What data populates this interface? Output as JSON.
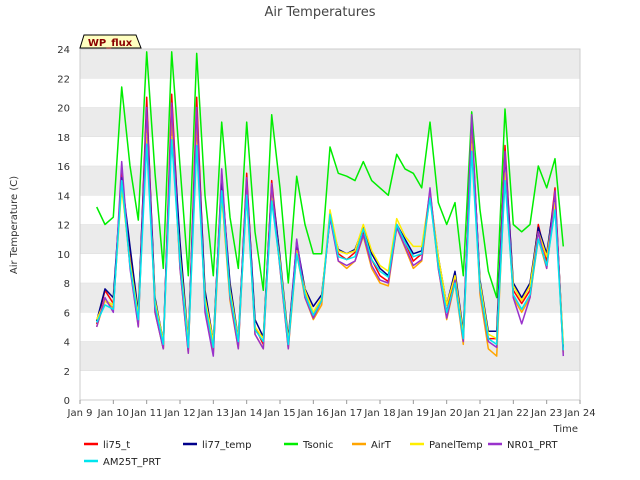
{
  "chart_data": {
    "type": "line",
    "title": "Air Temperatures",
    "xlabel": "Time",
    "ylabel": "Air Temperature (C)",
    "site_label": "WP_flux",
    "xlim": [
      "2024-01-09",
      "2024-01-24"
    ],
    "ylim": [
      0,
      24
    ],
    "x_ticks": [
      "Jan 9",
      "Jan 10",
      "Jan 11",
      "Jan 12",
      "Jan 13",
      "Jan 14",
      "Jan 15",
      "Jan 16",
      "Jan 17",
      "Jan 18",
      "Jan 19",
      "Jan 20",
      "Jan 21",
      "Jan 22",
      "Jan 23",
      "Jan 24"
    ],
    "y_ticks": [
      0,
      2,
      4,
      6,
      8,
      10,
      12,
      14,
      16,
      18,
      20,
      22,
      24
    ],
    "grid": "horizontal bands",
    "legend_position": "bottom",
    "x": [
      "Jan 9 12:00",
      "Jan 9 18:00",
      "Jan 10 00:00",
      "Jan 10 06:00",
      "Jan 10 12:00",
      "Jan 10 18:00",
      "Jan 11 00:00",
      "Jan 11 06:00",
      "Jan 11 12:00",
      "Jan 11 18:00",
      "Jan 12 00:00",
      "Jan 12 06:00",
      "Jan 12 12:00",
      "Jan 12 18:00",
      "Jan 13 00:00",
      "Jan 13 06:00",
      "Jan 13 12:00",
      "Jan 13 18:00",
      "Jan 14 00:00",
      "Jan 14 06:00",
      "Jan 14 12:00",
      "Jan 14 18:00",
      "Jan 15 00:00",
      "Jan 15 06:00",
      "Jan 15 12:00",
      "Jan 15 18:00",
      "Jan 16 00:00",
      "Jan 16 06:00",
      "Jan 16 12:00",
      "Jan 16 18:00",
      "Jan 17 00:00",
      "Jan 17 06:00",
      "Jan 17 12:00",
      "Jan 17 18:00",
      "Jan 18 00:00",
      "Jan 18 06:00",
      "Jan 18 12:00",
      "Jan 18 18:00",
      "Jan 19 00:00",
      "Jan 19 06:00",
      "Jan 19 12:00",
      "Jan 19 18:00",
      "Jan 20 00:00",
      "Jan 20 06:00",
      "Jan 20 12:00",
      "Jan 20 18:00",
      "Jan 21 00:00",
      "Jan 21 06:00",
      "Jan 21 12:00",
      "Jan 21 18:00",
      "Jan 22 00:00",
      "Jan 22 06:00",
      "Jan 22 12:00",
      "Jan 22 18:00",
      "Jan 23 00:00",
      "Jan 23 06:00",
      "Jan 23 12:00"
    ],
    "series": [
      {
        "name": "li75_t",
        "color": "#ff0000",
        "values": [
          5.2,
          7.5,
          6.6,
          15.5,
          9.8,
          5.4,
          20.7,
          6.4,
          3.5,
          20.9,
          9.8,
          3.5,
          20.7,
          6.8,
          3.5,
          15.5,
          7.2,
          3.7,
          15.5,
          5.0,
          3.8,
          15.0,
          9.5,
          3.8,
          10.5,
          7.4,
          5.8,
          7.0,
          12.6,
          10.0,
          9.6,
          10.1,
          11.5,
          9.6,
          8.5,
          8.1,
          12.0,
          10.8,
          9.5,
          10.0,
          14.3,
          9.4,
          6.0,
          8.5,
          4.2,
          19.0,
          7.8,
          4.2,
          4.2,
          17.4,
          7.5,
          6.6,
          7.5,
          12.0,
          9.5,
          14.5,
          3.2
        ]
      },
      {
        "name": "li77_temp",
        "color": "#00008b",
        "values": [
          5.4,
          7.6,
          7.0,
          15.2,
          10.5,
          6.0,
          20.0,
          7.0,
          4.0,
          19.5,
          10.8,
          4.0,
          19.5,
          7.5,
          4.0,
          15.0,
          8.0,
          4.2,
          15.0,
          5.5,
          4.3,
          14.6,
          9.8,
          4.2,
          10.8,
          7.6,
          6.4,
          7.2,
          12.4,
          10.3,
          10.0,
          10.3,
          11.8,
          10.0,
          9.0,
          8.5,
          12.0,
          11.0,
          10.0,
          10.2,
          14.0,
          9.8,
          6.5,
          8.8,
          4.7,
          18.5,
          8.2,
          4.7,
          4.7,
          16.8,
          8.0,
          7.0,
          8.0,
          11.8,
          10.0,
          14.0,
          3.6
        ]
      },
      {
        "name": "Tsonic",
        "color": "#00ee00",
        "values": [
          13.2,
          12.0,
          12.5,
          21.4,
          16.0,
          12.3,
          23.8,
          15.5,
          9.0,
          23.8,
          16.0,
          8.5,
          23.7,
          14.0,
          8.5,
          19.0,
          12.5,
          9.0,
          19.0,
          11.5,
          7.5,
          19.5,
          14.5,
          8.0,
          15.3,
          12.0,
          10.0,
          10.0,
          17.3,
          15.5,
          15.3,
          15.0,
          16.3,
          15.0,
          14.5,
          14.0,
          16.8,
          15.8,
          15.5,
          14.5,
          19.0,
          13.5,
          12.0,
          13.5,
          8.5,
          19.7,
          13.0,
          8.8,
          7.0,
          19.9,
          12.0,
          11.5,
          12.0,
          16.0,
          14.5,
          16.5,
          10.5
        ]
      },
      {
        "name": "AirT",
        "color": "#ffa500",
        "values": [
          5.0,
          6.8,
          6.3,
          14.8,
          9.2,
          5.0,
          19.5,
          6.0,
          3.5,
          19.0,
          9.0,
          3.2,
          19.0,
          6.3,
          3.2,
          14.0,
          6.8,
          3.5,
          14.5,
          4.5,
          3.5,
          14.2,
          9.0,
          3.5,
          10.0,
          7.0,
          5.5,
          6.5,
          12.8,
          9.5,
          9.0,
          9.5,
          11.2,
          9.0,
          8.0,
          7.8,
          11.8,
          10.4,
          9.0,
          9.5,
          14.0,
          9.0,
          5.5,
          8.0,
          3.8,
          18.2,
          7.2,
          3.5,
          3.0,
          15.5,
          7.0,
          6.0,
          7.0,
          11.0,
          9.0,
          13.5,
          3.2
        ]
      },
      {
        "name": "PanelTemp",
        "color": "#ffee00",
        "values": [
          5.5,
          6.8,
          6.5,
          14.5,
          9.5,
          5.8,
          18.2,
          6.8,
          4.0,
          18.0,
          9.8,
          4.0,
          17.5,
          7.0,
          4.0,
          14.0,
          7.5,
          4.2,
          14.0,
          5.0,
          4.2,
          13.8,
          9.5,
          4.0,
          10.2,
          7.5,
          6.0,
          7.0,
          13.0,
          10.2,
          10.0,
          10.2,
          12.0,
          10.2,
          9.2,
          8.8,
          12.4,
          11.2,
          10.5,
          10.5,
          14.2,
          9.8,
          6.5,
          8.5,
          4.5,
          17.5,
          8.0,
          4.5,
          4.2,
          15.5,
          7.8,
          6.8,
          7.8,
          11.5,
          9.8,
          13.5,
          3.8
        ]
      },
      {
        "name": "NR01_PRT",
        "color": "#9932cc",
        "values": [
          5.0,
          7.0,
          6.0,
          16.3,
          9.0,
          5.0,
          20.0,
          6.0,
          3.5,
          20.3,
          9.0,
          3.2,
          20.0,
          6.0,
          3.0,
          15.8,
          7.0,
          3.5,
          15.2,
          4.5,
          3.5,
          14.8,
          9.0,
          3.5,
          11.0,
          7.0,
          5.6,
          6.8,
          12.5,
          9.5,
          9.2,
          9.5,
          11.3,
          9.2,
          8.2,
          8.0,
          11.8,
          10.5,
          9.2,
          9.6,
          14.5,
          9.0,
          5.6,
          8.2,
          4.0,
          19.5,
          7.5,
          4.0,
          3.6,
          17.0,
          7.0,
          5.2,
          7.0,
          11.5,
          9.0,
          14.3,
          3.0
        ]
      },
      {
        "name": "AM25T_PRT",
        "color": "#00e5ee",
        "values": [
          5.3,
          6.5,
          6.2,
          15.0,
          9.2,
          5.5,
          17.5,
          6.5,
          3.8,
          17.8,
          9.5,
          3.6,
          17.4,
          6.6,
          3.6,
          14.3,
          7.2,
          4.0,
          14.0,
          4.8,
          4.0,
          13.6,
          9.2,
          3.8,
          10.0,
          7.2,
          5.8,
          6.8,
          12.7,
          9.8,
          9.6,
          9.8,
          11.7,
          9.6,
          8.8,
          8.4,
          12.0,
          10.8,
          9.8,
          10.0,
          13.8,
          9.2,
          6.0,
          8.0,
          4.2,
          17.0,
          7.6,
          4.2,
          3.8,
          15.0,
          7.2,
          6.2,
          7.2,
          11.0,
          9.2,
          13.0,
          3.4
        ]
      }
    ]
  }
}
